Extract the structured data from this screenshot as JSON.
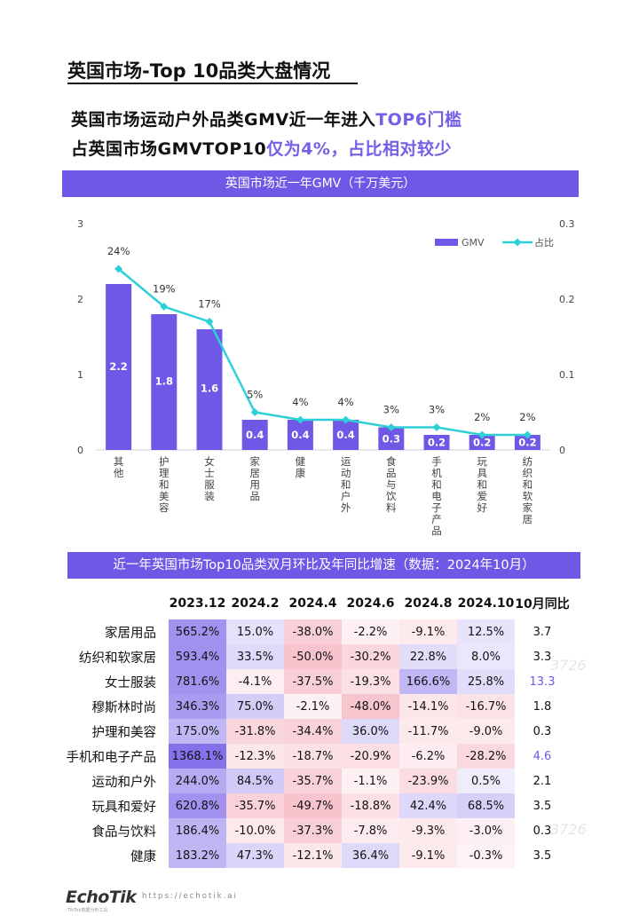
{
  "page": {
    "title": "英国市场-Top 10品类大盘情况",
    "headline_line1_prefix": "英国市场运动户外品类GMV近一年进入",
    "headline_line1_highlight": "TOP6门槛",
    "headline_line2_prefix": "占英国市场GMVTOP10",
    "headline_line2_highlight": "仅为4%，占比相对较少"
  },
  "chart_banner": "英国市场近一年GMV（千万美元）",
  "chart_data": {
    "type": "bar",
    "categories": [
      "其他",
      "护理和美容",
      "女士服装",
      "家居用品",
      "健康",
      "运动和户外",
      "食品与饮料",
      "手机和电子产品",
      "玩具和爱好",
      "纺织和软家居"
    ],
    "series": [
      {
        "name": "GMV",
        "type": "bar",
        "axis": "left",
        "values": [
          2.2,
          1.8,
          1.6,
          0.4,
          0.4,
          0.4,
          0.3,
          0.2,
          0.2,
          0.2
        ],
        "color": "#7058e6"
      },
      {
        "name": "占比",
        "type": "line",
        "axis": "right",
        "values": [
          0.24,
          0.19,
          0.17,
          0.05,
          0.04,
          0.04,
          0.03,
          0.03,
          0.02,
          0.02
        ],
        "labels": [
          "24%",
          "19%",
          "17%",
          "5%",
          "4%",
          "4%",
          "3%",
          "3%",
          "2%",
          "2%"
        ],
        "color": "#2ed0d8"
      }
    ],
    "left_ticks": [
      "0",
      "1",
      "2",
      "3"
    ],
    "right_ticks": [
      "0",
      "0.1",
      "0.2",
      "0.3"
    ],
    "ylim": [
      0,
      3
    ],
    "y2lim": [
      0,
      0.3
    ],
    "legend_position": "top-right",
    "grid": false
  },
  "table": {
    "banner": "近一年英国市场Top10品类双月环比及年同比增速（数据：2024年10月）",
    "headers": [
      "",
      "2023.12",
      "2024.2",
      "2024.4",
      "2024.6",
      "2024.8",
      "2024.10",
      "10月同比"
    ],
    "rows": [
      {
        "cat": "家居用品",
        "vals": [
          "565.2%",
          "15.0%",
          "-38.0%",
          "-2.2%",
          "-9.1%",
          "12.5%"
        ],
        "yoy": "3.7"
      },
      {
        "cat": "纺织和软家居",
        "vals": [
          "593.4%",
          "33.5%",
          "-50.0%",
          "-30.2%",
          "22.8%",
          "8.0%"
        ],
        "yoy": "3.3"
      },
      {
        "cat": "女士服装",
        "vals": [
          "781.6%",
          "-4.1%",
          "-37.5%",
          "-19.3%",
          "166.6%",
          "25.8%"
        ],
        "yoy": "13.3",
        "yoy_color": "#7058e6"
      },
      {
        "cat": "穆斯林时尚",
        "vals": [
          "346.3%",
          "75.0%",
          "-2.1%",
          "-48.0%",
          "-14.1%",
          "-16.7%"
        ],
        "yoy": "1.8"
      },
      {
        "cat": "护理和美容",
        "vals": [
          "175.0%",
          "-31.8%",
          "-34.4%",
          "36.0%",
          "-11.7%",
          "-9.0%"
        ],
        "yoy": "0.3"
      },
      {
        "cat": "手机和电子产品",
        "vals": [
          "1368.1%",
          "-12.3%",
          "-18.7%",
          "-20.9%",
          "-6.2%",
          "-28.2%"
        ],
        "yoy": "4.6",
        "yoy_color": "#7058e6"
      },
      {
        "cat": "运动和户外",
        "vals": [
          "244.0%",
          "84.5%",
          "-35.7%",
          "-1.1%",
          "-23.9%",
          "0.5%"
        ],
        "yoy": "2.1"
      },
      {
        "cat": "玩具和爱好",
        "vals": [
          "620.8%",
          "-35.7%",
          "-49.7%",
          "-18.8%",
          "42.4%",
          "68.5%"
        ],
        "yoy": "3.5"
      },
      {
        "cat": "食品与饮料",
        "vals": [
          "186.4%",
          "-10.0%",
          "-37.3%",
          "-7.8%",
          "-9.3%",
          "-3.0%"
        ],
        "yoy": "0.3"
      },
      {
        "cat": "健康",
        "vals": [
          "183.2%",
          "47.3%",
          "-12.1%",
          "36.4%",
          "-9.1%",
          "-0.3%"
        ],
        "yoy": "3.5"
      }
    ]
  },
  "footer": {
    "logo": "EchoTik",
    "logo_sub": "TikTok数据分析工具",
    "url": "https://echotik.ai"
  }
}
